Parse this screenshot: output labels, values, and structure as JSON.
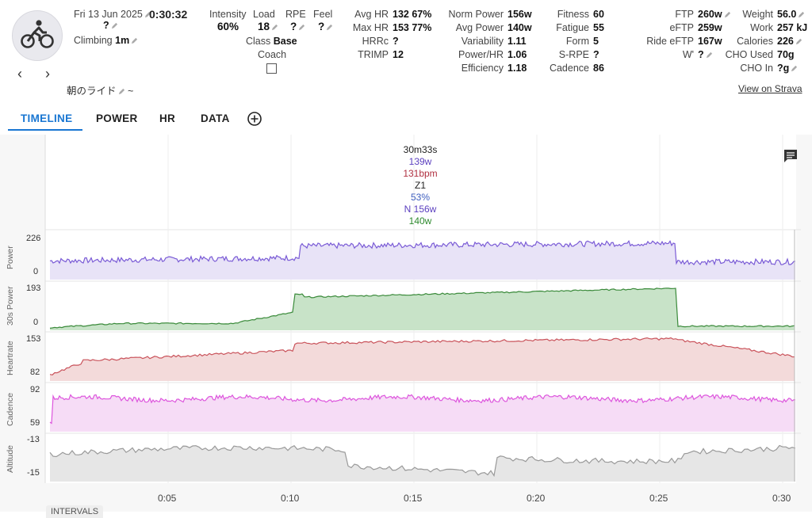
{
  "activity": {
    "date": "Fri 13 Jun 2025",
    "duration": "0:30:32",
    "question_mark": "?",
    "climbing_label": "Climbing",
    "climbing_value": "1m",
    "name": "朝のライド",
    "tilde": "~"
  },
  "top_stats": {
    "intensity_label": "Intensity",
    "intensity_value": "60%",
    "load_label": "Load",
    "load_value": "18",
    "rpe_label": "RPE",
    "rpe_value": "?",
    "feel_label": "Feel",
    "feel_value": "?",
    "class_label": "Class",
    "class_value": "Base",
    "coach_label": "Coach"
  },
  "stats_col1": [
    {
      "label": "Avg HR",
      "value": "132 67%"
    },
    {
      "label": "Max HR",
      "value": "153 77%"
    },
    {
      "label": "HRRc",
      "value": "?"
    },
    {
      "label": "TRIMP",
      "value": "12"
    }
  ],
  "stats_col2": [
    {
      "label": "Norm Power",
      "value": "156w"
    },
    {
      "label": "Avg Power",
      "value": "140w"
    },
    {
      "label": "Variability",
      "value": "1.11"
    },
    {
      "label": "Power/HR",
      "value": "1.06"
    },
    {
      "label": "Efficiency",
      "value": "1.18"
    }
  ],
  "stats_col3": [
    {
      "label": "Fitness",
      "value": "60"
    },
    {
      "label": "Fatigue",
      "value": "55"
    },
    {
      "label": "Form",
      "value": "5"
    },
    {
      "label": "S-RPE",
      "value": "?"
    },
    {
      "label": "Cadence",
      "value": "86"
    }
  ],
  "stats_col4": [
    {
      "label": "FTP",
      "value": "260w"
    },
    {
      "label": "eFTP",
      "value": "259w"
    },
    {
      "label": "Ride eFTP",
      "value": "167w"
    },
    {
      "label": "W'",
      "value": "?"
    }
  ],
  "stats_col5": [
    {
      "label": "Weight",
      "value": "56.0"
    },
    {
      "label": "Work",
      "value": "257 kJ"
    },
    {
      "label": "Calories",
      "value": "226"
    },
    {
      "label": "CHO Used",
      "value": "70g"
    },
    {
      "label": "CHO In",
      "value": "?g"
    }
  ],
  "strava_link": "View on Strava",
  "tabs": [
    "TIMELINE",
    "POWER",
    "HR",
    "DATA"
  ],
  "tooltip": {
    "time": "30m33s",
    "power": "139w",
    "hr": "131bpm",
    "zone": "Z1",
    "pct": "53%",
    "norm": "N 156w",
    "avg": "140w"
  },
  "charts": {
    "power": {
      "label": "Power",
      "max": "226",
      "min": "0"
    },
    "power30": {
      "label": "30s Power",
      "max": "193",
      "min": "0"
    },
    "hr": {
      "label": "Heartrate",
      "max": "153",
      "min": "82"
    },
    "cadence": {
      "label": "Cadence",
      "max": "92",
      "min": "59"
    },
    "altitude": {
      "label": "Altitude",
      "max": "-13",
      "min": "-15"
    }
  },
  "x_ticks": [
    "0:05",
    "0:10",
    "0:15",
    "0:20",
    "0:25",
    "0:30"
  ],
  "intervals_label": "INTERVALS",
  "colors": {
    "power": "#7a5bd6",
    "power30": "#3a8a3a",
    "hr": "#c9525a",
    "cadence": "#dd55dd",
    "altitude": "#999999",
    "accent": "#1976d2"
  }
}
